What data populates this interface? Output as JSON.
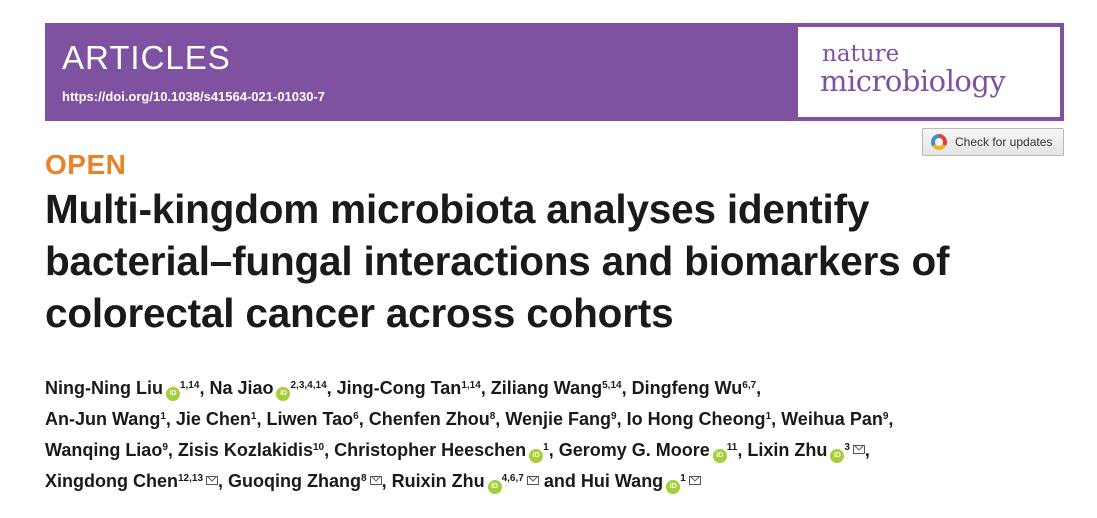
{
  "header": {
    "section": "ARTICLES",
    "doi": "https://doi.org/10.1038/s41564-021-01030-7",
    "journal_line1": "nature",
    "journal_line2": "microbiology",
    "banner_color": "#7e52a0"
  },
  "check_updates": {
    "label": "Check for updates",
    "icon": "crossmark-icon"
  },
  "open_label": "OPEN",
  "open_color": "#e98326",
  "title": "Multi-kingdom microbiota analyses identify bacterial–fungal interactions and biomarkers of colorectal cancer across cohorts",
  "orcid_glyph": "iD",
  "author_lines": [
    [
      {
        "name": "Ning-Ning Liu",
        "orcid": true,
        "aff": "1,14",
        "sep": ", "
      },
      {
        "name": "Na Jiao",
        "orcid": true,
        "aff": "2,3,4,14",
        "sep": ", "
      },
      {
        "name": "Jing-Cong Tan",
        "orcid": false,
        "aff": "1,14",
        "sep": ", "
      },
      {
        "name": "Ziliang Wang",
        "orcid": false,
        "aff": "5,14",
        "sep": ", "
      },
      {
        "name": "Dingfeng Wu",
        "orcid": false,
        "aff": "6,7",
        "sep": ","
      }
    ],
    [
      {
        "name": "An-Jun Wang",
        "orcid": false,
        "aff": "1",
        "sep": ", "
      },
      {
        "name": "Jie Chen",
        "orcid": false,
        "aff": "1",
        "sep": ", "
      },
      {
        "name": "Liwen Tao",
        "orcid": false,
        "aff": "6",
        "sep": ", "
      },
      {
        "name": "Chenfen Zhou",
        "orcid": false,
        "aff": "8",
        "sep": ", "
      },
      {
        "name": "Wenjie Fang",
        "orcid": false,
        "aff": "9",
        "sep": ", "
      },
      {
        "name": "Io Hong Cheong",
        "orcid": false,
        "aff": "1",
        "sep": ", "
      },
      {
        "name": "Weihua Pan",
        "orcid": false,
        "aff": "9",
        "sep": ","
      }
    ],
    [
      {
        "name": "Wanqing Liao",
        "orcid": false,
        "aff": "9",
        "sep": ", "
      },
      {
        "name": "Zisis Kozlakidis",
        "orcid": false,
        "aff": "10",
        "sep": ", "
      },
      {
        "name": "Christopher Heeschen",
        "orcid": true,
        "aff": "1",
        "sep": ", "
      },
      {
        "name": "Geromy G. Moore",
        "orcid": true,
        "aff": "11",
        "sep": ", "
      },
      {
        "name": "Lixin Zhu",
        "orcid": true,
        "aff": "3",
        "mail": true,
        "sep": ","
      }
    ],
    [
      {
        "name": "Xingdong Chen",
        "orcid": false,
        "aff": "12,13",
        "mail": true,
        "sep": ", "
      },
      {
        "name": "Guoqing Zhang",
        "orcid": false,
        "aff": "8",
        "mail": true,
        "sep": ", "
      },
      {
        "name": "Ruixin Zhu",
        "orcid": true,
        "aff": "4,6,7",
        "mail": true,
        "sep": " and "
      },
      {
        "name": "Hui Wang",
        "orcid": true,
        "aff": "1",
        "mail": true,
        "sep": ""
      }
    ]
  ]
}
